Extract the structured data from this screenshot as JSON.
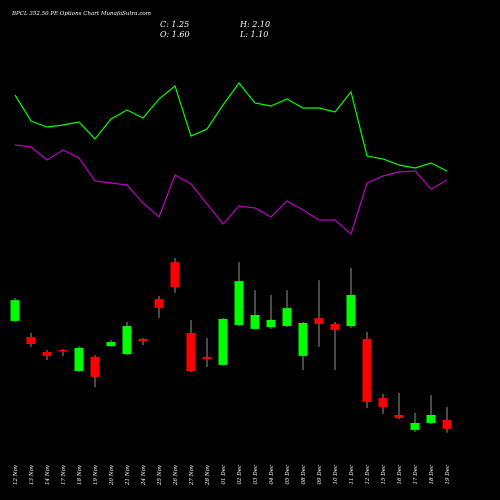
{
  "chart_data": {
    "type": "candlestick",
    "title": "BPCL 352.50 PE Options Chart MunafaSutra.com",
    "ohlc_labels": {
      "close": "C: 1.25",
      "high": "H: 2.10",
      "open": "O: 1.60",
      "low": "L: 1.10"
    },
    "categories": [
      "12 Nov",
      "13 Nov",
      "14 Nov",
      "17 Nov",
      "18 Nov",
      "19 Nov",
      "20 Nov",
      "21 Nov",
      "24 Nov",
      "25 Nov",
      "26 Nov",
      "27 Nov",
      "28 Nov",
      "01 Dec",
      "02 Dec",
      "03 Dec",
      "04 Dec",
      "05 Dec",
      "08 Dec",
      "09 Dec",
      "10 Dec",
      "11 Dec",
      "12 Dec",
      "15 Dec",
      "16 Dec",
      "17 Dec",
      "18 Dec",
      "19 Dec"
    ],
    "open": [
      5.45,
      4.82,
      4.24,
      4.32,
      3.5,
      4.05,
      4.47,
      4.16,
      4.75,
      6.3,
      7.74,
      4.98,
      4.05,
      3.74,
      5.29,
      5.14,
      5.21,
      5.25,
      4.09,
      5.56,
      5.33,
      5.25,
      4.75,
      2.45,
      1.79,
      1.21,
      1.48,
      1.6
    ],
    "high": [
      6.34,
      4.98,
      4.32,
      4.36,
      4.47,
      4.12,
      4.71,
      5.41,
      4.79,
      6.42,
      7.9,
      5.49,
      4.79,
      5.56,
      7.74,
      6.65,
      6.46,
      6.65,
      5.41,
      7.04,
      5.41,
      7.51,
      5.02,
      2.61,
      2.65,
      1.87,
      2.57,
      2.1
    ],
    "low": [
      5.41,
      4.44,
      3.93,
      4.09,
      3.46,
      2.88,
      4.44,
      4.12,
      4.51,
      5.56,
      6.54,
      3.46,
      3.66,
      3.7,
      5.25,
      5.1,
      5.14,
      5.21,
      3.54,
      4.44,
      3.54,
      5.18,
      2.06,
      1.83,
      1.63,
      1.13,
      1.44,
      1.1
    ],
    "close": [
      6.26,
      4.55,
      4.09,
      4.28,
      4.4,
      3.27,
      4.63,
      5.25,
      4.67,
      5.95,
      6.77,
      3.5,
      3.97,
      5.53,
      7.0,
      5.68,
      5.49,
      5.95,
      5.37,
      5.33,
      5.1,
      6.46,
      2.3,
      2.1,
      1.67,
      1.48,
      1.79,
      1.25
    ],
    "up_color": "#00ff00",
    "down_color": "#ff0000",
    "ylim": [
      0,
      8.21
    ],
    "series": [
      {
        "color": "#00ff00",
        "axis": "y2",
        "values": [
          205,
          179,
          173,
          175,
          178,
          161,
          181,
          190,
          182,
          201,
          214,
          164,
          171,
          195,
          217,
          197,
          194,
          201,
          192,
          192,
          188,
          208,
          144,
          141,
          135,
          132,
          137,
          129
        ]
      },
      {
        "color": "#c000c0",
        "axis": "y2",
        "values": [
          155,
          153,
          140,
          150,
          142,
          119,
          117,
          115,
          97,
          83,
          125,
          116,
          96,
          76,
          94,
          92,
          83,
          99,
          90,
          80,
          80,
          66,
          117,
          124,
          128,
          129,
          111,
          120
        ]
      }
    ],
    "y2lim": [
      0,
      300
    ]
  }
}
